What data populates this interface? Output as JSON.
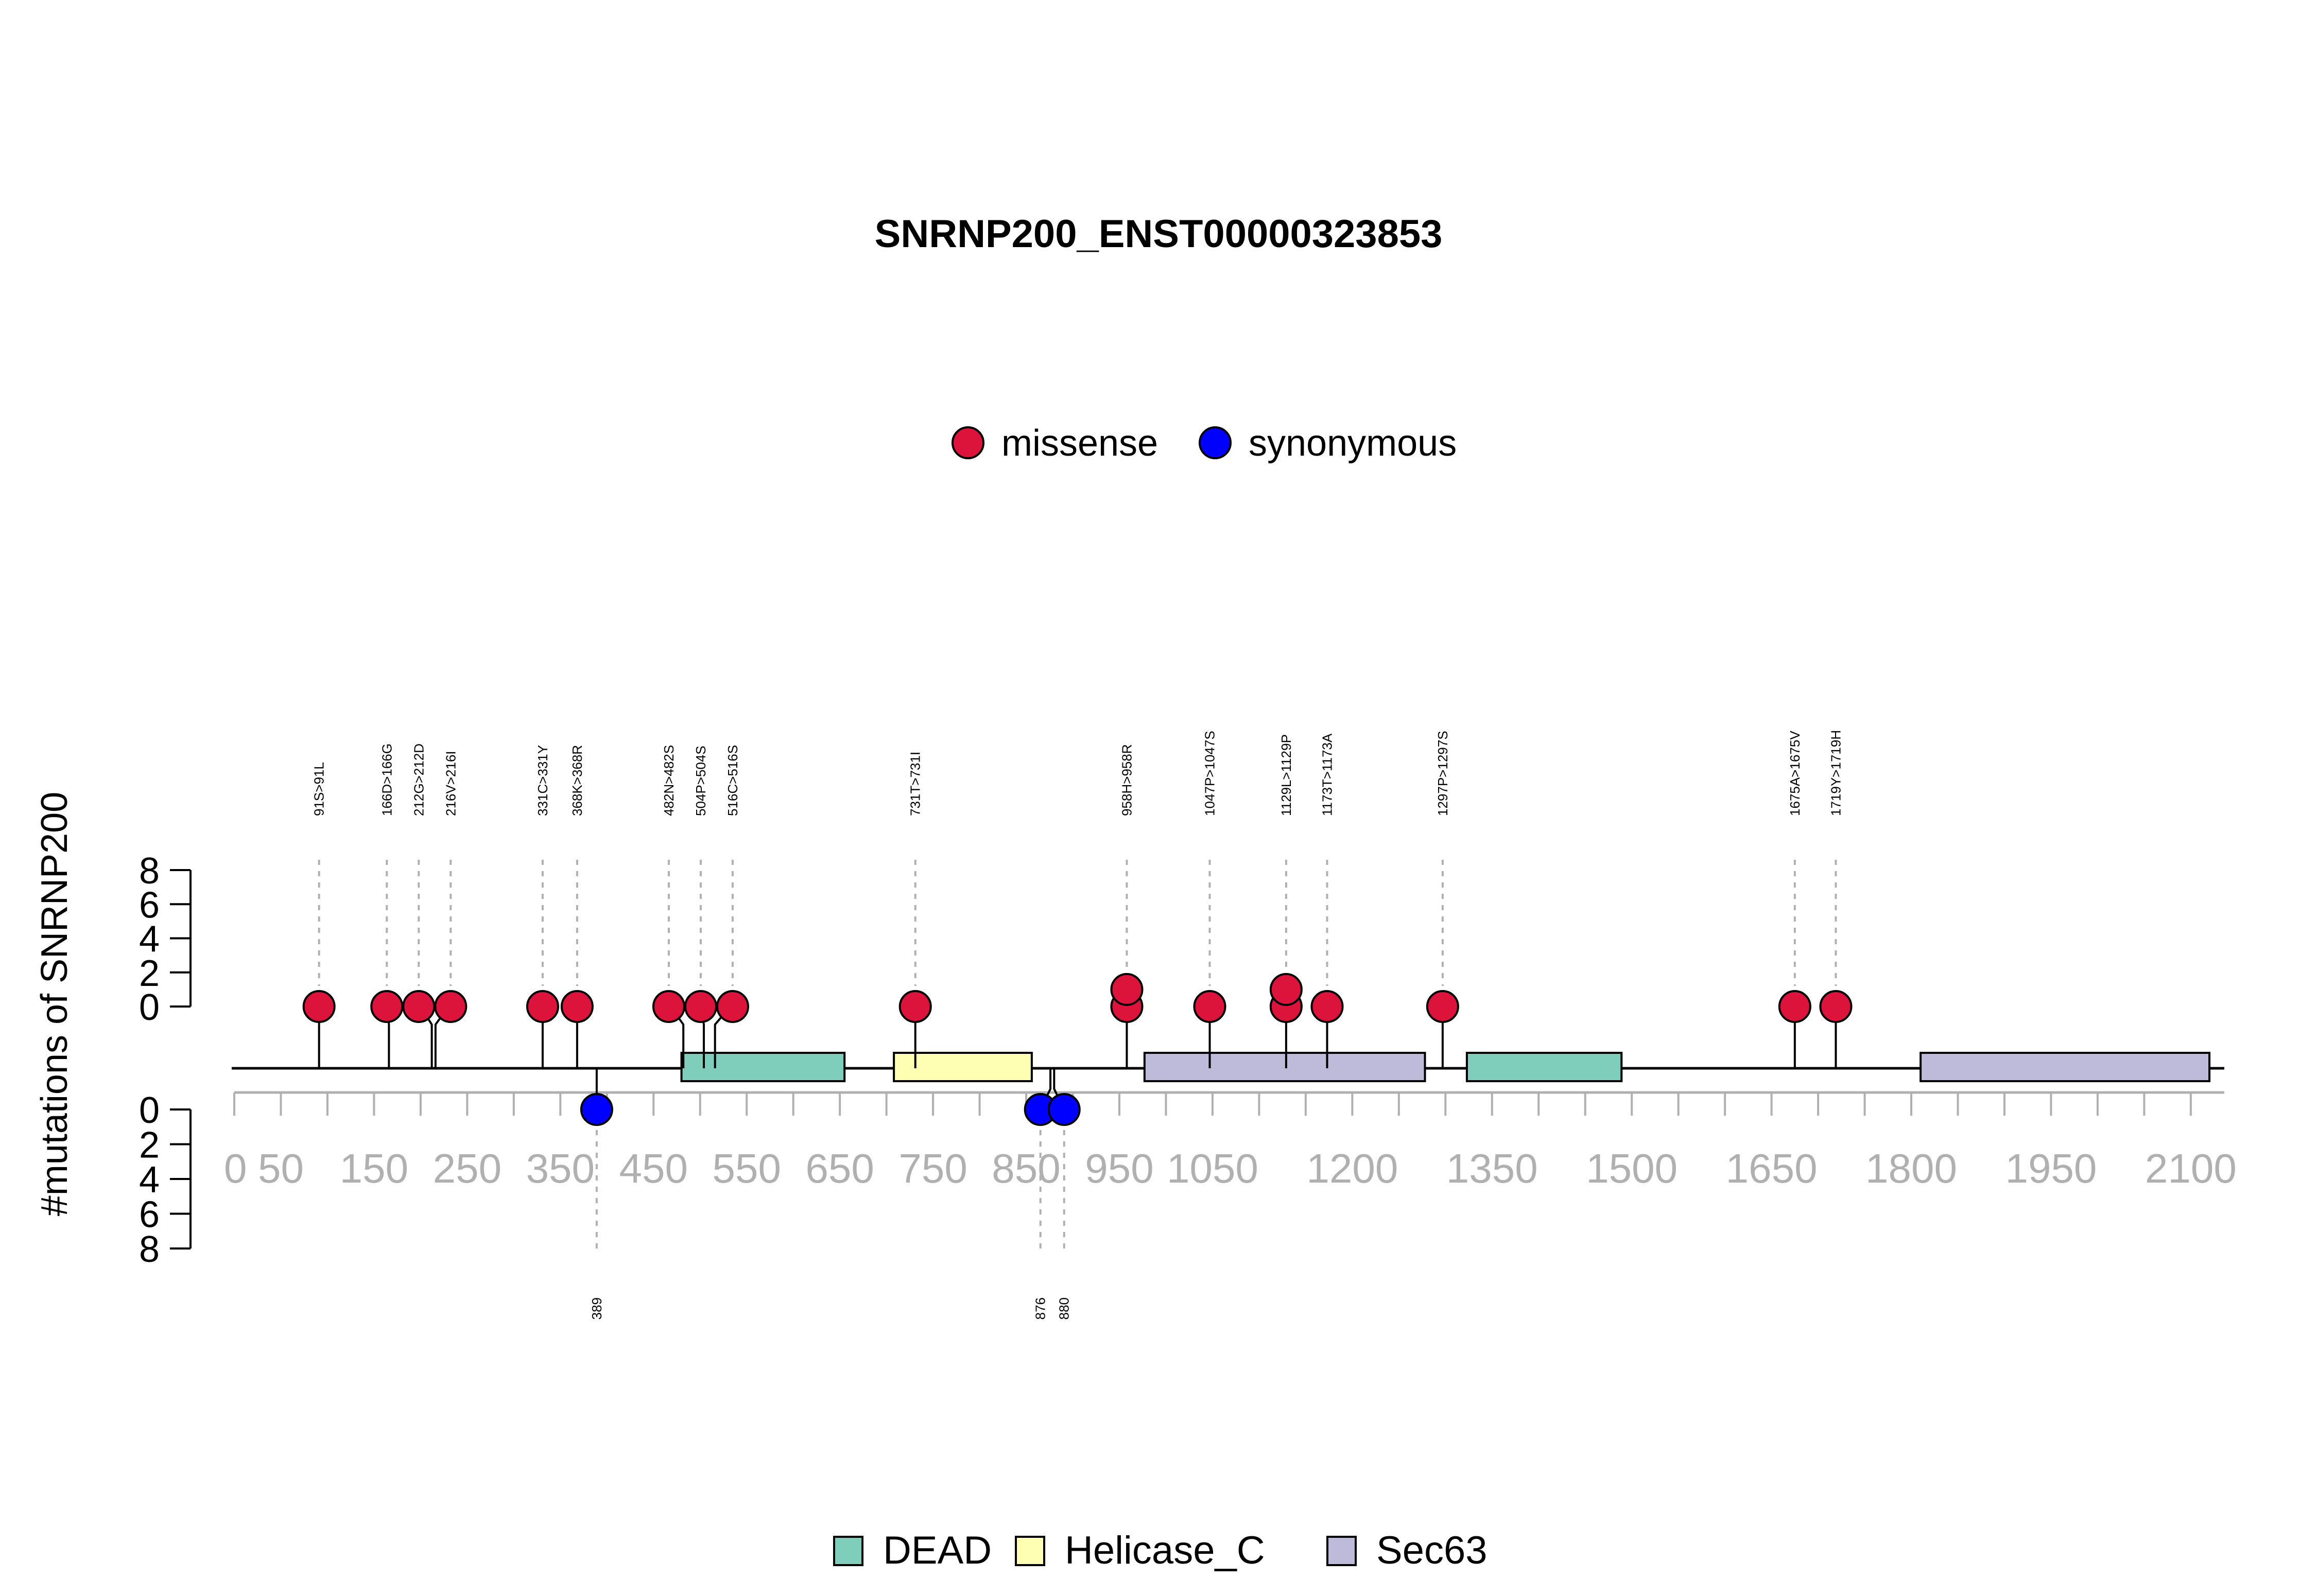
{
  "chart_data": {
    "type": "lollipop",
    "title": "SNRNP200_ENST00000323853",
    "ylabel": "#mutations of SNRNP200",
    "ylim_top": [
      0,
      8
    ],
    "ylim_bottom": [
      0,
      8
    ],
    "y_ticks": [
      "0",
      "2",
      "4",
      "6",
      "8"
    ],
    "xlim": [
      0,
      2136
    ],
    "x_ticks": [
      0,
      50,
      150,
      250,
      350,
      450,
      550,
      650,
      750,
      850,
      950,
      1050,
      1200,
      1350,
      1500,
      1650,
      1800,
      1950,
      2100
    ],
    "legend_mutations": [
      {
        "name": "missense",
        "color": "#DC143C"
      },
      {
        "name": "synonymous",
        "color": "#0000FF"
      }
    ],
    "legend_domains": [
      {
        "name": "DEAD",
        "color": "#7FCDBB"
      },
      {
        "name": "Helicase_C",
        "color": "#FFFFB3"
      },
      {
        "name": "Sec63",
        "color": "#BEBADA"
      }
    ],
    "domains": [
      {
        "name": "DEAD",
        "start": 480,
        "end": 655
      },
      {
        "name": "Helicase_C",
        "start": 708,
        "end": 856
      },
      {
        "name": "Sec63",
        "start": 977,
        "end": 1278
      },
      {
        "name": "DEAD",
        "start": 1323,
        "end": 1489
      },
      {
        "name": "Sec63",
        "start": 1810,
        "end": 2120
      }
    ],
    "mutations_top": [
      {
        "pos": 91,
        "label": "91S>91L",
        "count": 1,
        "type": "missense"
      },
      {
        "pos": 166,
        "label": "166D>166G",
        "count": 1,
        "type": "missense"
      },
      {
        "pos": 212,
        "label": "212G>212D",
        "count": 1,
        "type": "missense"
      },
      {
        "pos": 216,
        "label": "216V>216I",
        "count": 1,
        "type": "missense"
      },
      {
        "pos": 331,
        "label": "331C>331Y",
        "count": 1,
        "type": "missense"
      },
      {
        "pos": 368,
        "label": "368K>368R",
        "count": 1,
        "type": "missense"
      },
      {
        "pos": 482,
        "label": "482N>482S",
        "count": 1,
        "type": "missense"
      },
      {
        "pos": 504,
        "label": "504P>504S",
        "count": 1,
        "type": "missense"
      },
      {
        "pos": 516,
        "label": "516C>516S",
        "count": 1,
        "type": "missense"
      },
      {
        "pos": 731,
        "label": "731T>731I",
        "count": 1,
        "type": "missense"
      },
      {
        "pos": 958,
        "label": "958H>958R",
        "count": 2,
        "type": "missense"
      },
      {
        "pos": 1047,
        "label": "1047P>1047S",
        "count": 1,
        "type": "missense"
      },
      {
        "pos": 1129,
        "label": "1129L>1129P",
        "count": 2,
        "type": "missense"
      },
      {
        "pos": 1173,
        "label": "1173T>1173A",
        "count": 1,
        "type": "missense"
      },
      {
        "pos": 1297,
        "label": "1297P>1297S",
        "count": 1,
        "type": "missense"
      },
      {
        "pos": 1675,
        "label": "1675A>1675V",
        "count": 1,
        "type": "missense"
      },
      {
        "pos": 1719,
        "label": "1719Y>1719H",
        "count": 1,
        "type": "missense"
      }
    ],
    "mutations_bottom": [
      {
        "pos": 389,
        "label": "389",
        "count": 1,
        "type": "synonymous"
      },
      {
        "pos": 876,
        "label": "876",
        "count": 1,
        "type": "synonymous"
      },
      {
        "pos": 880,
        "label": "880",
        "count": 1,
        "type": "synonymous"
      }
    ]
  }
}
